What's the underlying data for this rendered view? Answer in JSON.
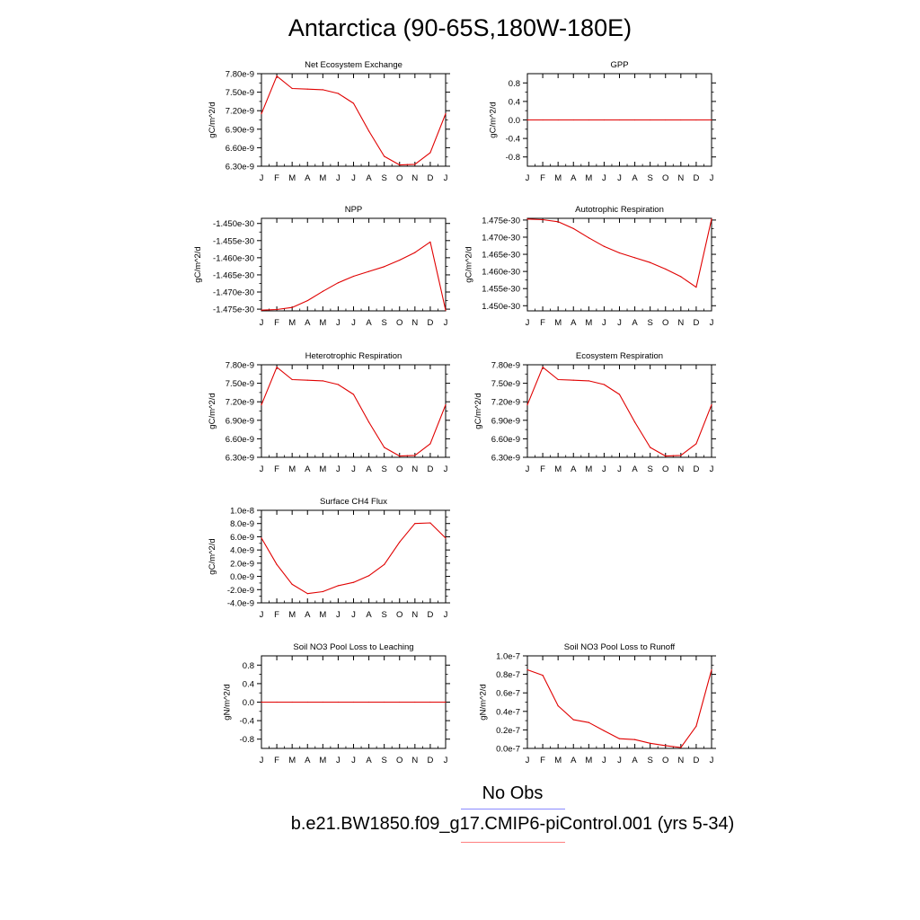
{
  "title": "Antarctica (90-65S,180W-180E)",
  "month_labels": [
    "J",
    "F",
    "M",
    "A",
    "M",
    "J",
    "J",
    "A",
    "S",
    "O",
    "N",
    "D",
    "J"
  ],
  "legend": {
    "obs_label": "No Obs",
    "obs_color": "#8a8aff",
    "case_label": "b.e21.BW1850.f09_g17.CMIP6-piControl.001 (yrs 5-34)",
    "case_color": "#ff7f7f"
  },
  "line_color": "#e00000",
  "chart_data": [
    {
      "type": "line",
      "title": "Net Ecosystem Exchange",
      "ylabel": "gC/m^2/d",
      "ylim": [
        6.3e-09,
        7.8e-09
      ],
      "yticks": [
        6.3e-09,
        6.6e-09,
        6.9e-09,
        7.2e-09,
        7.5e-09,
        7.8e-09
      ],
      "ytick_labels": [
        "6.30e-9",
        "6.60e-9",
        "6.90e-9",
        "7.20e-9",
        "7.50e-9",
        "7.80e-9"
      ],
      "values": [
        7.15e-09,
        7.76e-09,
        7.56e-09,
        7.55e-09,
        7.54e-09,
        7.48e-09,
        7.32e-09,
        6.87e-09,
        6.46e-09,
        6.32e-09,
        6.33e-09,
        6.52e-09,
        7.15e-09
      ]
    },
    {
      "type": "line",
      "title": "GPP",
      "ylabel": "gC/m^2/d",
      "ylim": [
        -1.0,
        1.0
      ],
      "yticks": [
        -0.8,
        -0.4,
        0.0,
        0.4,
        0.8
      ],
      "ytick_labels": [
        "-0.8",
        "-0.4",
        "0.0",
        "0.4",
        "0.8"
      ],
      "values": [
        0,
        0,
        0,
        0,
        0,
        0,
        0,
        0,
        0,
        0,
        0,
        0,
        0
      ]
    },
    {
      "type": "line",
      "title": "NPP",
      "ylabel": "gC/m^2/d",
      "ylim": [
        -1.4755e-30,
        -1.4485e-30
      ],
      "yticks": [
        -1.475e-30,
        -1.47e-30,
        -1.465e-30,
        -1.46e-30,
        -1.455e-30,
        -1.45e-30
      ],
      "ytick_labels": [
        "-1.475e-30",
        "-1.470e-30",
        "-1.465e-30",
        "-1.460e-30",
        "-1.455e-30",
        "-1.450e-30"
      ],
      "values": [
        -1.4753e-30,
        -1.4751e-30,
        -1.4745e-30,
        -1.4725e-30,
        -1.4698e-30,
        -1.4673e-30,
        -1.4654e-30,
        -1.464e-30,
        -1.4626e-30,
        -1.4607e-30,
        -1.4585e-30,
        -1.4554e-30,
        -1.4753e-30
      ]
    },
    {
      "type": "line",
      "title": "Autotrophic Respiration",
      "ylabel": "gC/m^2/d",
      "ylim": [
        1.4485e-30,
        1.4755e-30
      ],
      "yticks": [
        1.45e-30,
        1.455e-30,
        1.46e-30,
        1.465e-30,
        1.47e-30,
        1.475e-30
      ],
      "ytick_labels": [
        "1.450e-30",
        "1.455e-30",
        "1.460e-30",
        "1.465e-30",
        "1.470e-30",
        "1.475e-30"
      ],
      "values": [
        1.4753e-30,
        1.4751e-30,
        1.4745e-30,
        1.4725e-30,
        1.4698e-30,
        1.4673e-30,
        1.4654e-30,
        1.464e-30,
        1.4626e-30,
        1.4607e-30,
        1.4585e-30,
        1.4554e-30,
        1.4753e-30
      ]
    },
    {
      "type": "line",
      "title": "Heterotrophic Respiration",
      "ylabel": "gC/m^2/d",
      "ylim": [
        6.3e-09,
        7.8e-09
      ],
      "yticks": [
        6.3e-09,
        6.6e-09,
        6.9e-09,
        7.2e-09,
        7.5e-09,
        7.8e-09
      ],
      "ytick_labels": [
        "6.30e-9",
        "6.60e-9",
        "6.90e-9",
        "7.20e-9",
        "7.50e-9",
        "7.80e-9"
      ],
      "values": [
        7.15e-09,
        7.76e-09,
        7.56e-09,
        7.55e-09,
        7.54e-09,
        7.48e-09,
        7.32e-09,
        6.87e-09,
        6.46e-09,
        6.32e-09,
        6.33e-09,
        6.52e-09,
        7.15e-09
      ]
    },
    {
      "type": "line",
      "title": "Ecosystem Respiration",
      "ylabel": "gC/m^2/d",
      "ylim": [
        6.3e-09,
        7.8e-09
      ],
      "yticks": [
        6.3e-09,
        6.6e-09,
        6.9e-09,
        7.2e-09,
        7.5e-09,
        7.8e-09
      ],
      "ytick_labels": [
        "6.30e-9",
        "6.60e-9",
        "6.90e-9",
        "7.20e-9",
        "7.50e-9",
        "7.80e-9"
      ],
      "values": [
        7.15e-09,
        7.76e-09,
        7.56e-09,
        7.55e-09,
        7.54e-09,
        7.48e-09,
        7.32e-09,
        6.87e-09,
        6.46e-09,
        6.32e-09,
        6.33e-09,
        6.52e-09,
        7.15e-09
      ]
    },
    {
      "type": "line",
      "title": "Surface CH4 Flux",
      "ylabel": "gC/m^2/d",
      "ylim": [
        -4e-09,
        1e-08
      ],
      "yticks": [
        -4e-09,
        -2e-09,
        0,
        2e-09,
        4e-09,
        6e-09,
        8e-09,
        1e-08
      ],
      "ytick_labels": [
        "-4.0e-9",
        "-2.0e-9",
        "0.0e-9",
        "2.0e-9",
        "4.0e-9",
        "6.0e-9",
        "8.0e-9",
        "1.0e-8"
      ],
      "values": [
        5.8e-09,
        1.8e-09,
        -1.2e-09,
        -2.6e-09,
        -2.3e-09,
        -1.4e-09,
        -9e-10,
        1e-10,
        1.8e-09,
        5.2e-09,
        8e-09,
        8.1e-09,
        5.8e-09
      ]
    },
    {
      "type": "line",
      "title": "Soil NO3 Pool Loss to Leaching",
      "ylabel": "gN/m^2/d",
      "ylim": [
        -1.0,
        1.0
      ],
      "yticks": [
        -0.8,
        -0.4,
        0.0,
        0.4,
        0.8
      ],
      "ytick_labels": [
        "-0.8",
        "-0.4",
        "0.0",
        "0.4",
        "0.8"
      ],
      "values": [
        0,
        0,
        0,
        0,
        0,
        0,
        0,
        0,
        0,
        0,
        0,
        0,
        0
      ]
    },
    {
      "type": "line",
      "title": "Soil NO3 Pool Loss to Runoff",
      "ylabel": "gN/m^2/d",
      "ylim": [
        0.0,
        1e-07
      ],
      "yticks": [
        0,
        2e-08,
        4e-08,
        6e-08,
        8e-08,
        1e-07
      ],
      "ytick_labels": [
        "0.0e-7",
        "0.2e-7",
        "0.4e-7",
        "0.6e-7",
        "0.8e-7",
        "1.0e-7"
      ],
      "values": [
        8.5e-08,
        7.9e-08,
        4.6e-08,
        3.1e-08,
        2.8e-08,
        1.9e-08,
        1.05e-08,
        9.5e-09,
        5.5e-09,
        3e-09,
        1e-09,
        2.4e-08,
        8.5e-08
      ]
    }
  ]
}
